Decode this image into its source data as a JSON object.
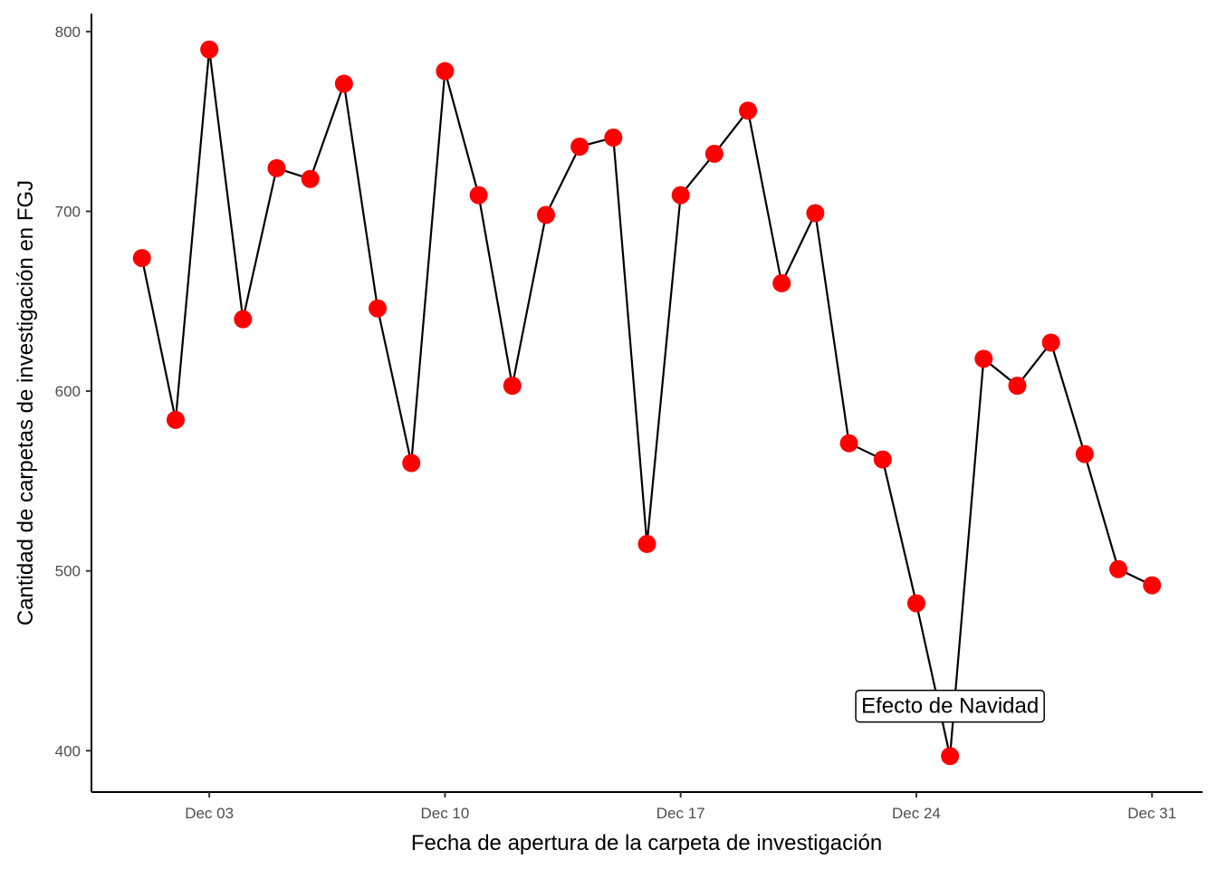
{
  "chart_data": {
    "type": "line",
    "title": "",
    "xlabel": "Fecha de apertura de la carpeta de investigación",
    "ylabel": "Cantidad de carpetas de investigación en FGJ",
    "x_tick_labels": [
      "Dec 03",
      "Dec 10",
      "Dec 17",
      "Dec 24",
      "Dec 31"
    ],
    "x_tick_days": [
      3,
      10,
      17,
      24,
      31
    ],
    "y_ticks": [
      400,
      500,
      600,
      700,
      800
    ],
    "xlim": [
      -0.5,
      32.5
    ],
    "ylim": [
      377,
      810
    ],
    "grid": false,
    "legend": "none",
    "point_color": "#ff0000",
    "line_color": "#000000",
    "series": [
      {
        "x": [
          "2019-12-01",
          "2019-12-02",
          "2019-12-03",
          "2019-12-04",
          "2019-12-05",
          "2019-12-06",
          "2019-12-07",
          "2019-12-08",
          "2019-12-09",
          "2019-12-10",
          "2019-12-11",
          "2019-12-12",
          "2019-12-13",
          "2019-12-14",
          "2019-12-15",
          "2019-12-16",
          "2019-12-17",
          "2019-12-18",
          "2019-12-19",
          "2019-12-20",
          "2019-12-21",
          "2019-12-22",
          "2019-12-23",
          "2019-12-24",
          "2019-12-25",
          "2019-12-26",
          "2019-12-27",
          "2019-12-28",
          "2019-12-29",
          "2019-12-30",
          "2019-12-31"
        ],
        "values": [
          674,
          584,
          790,
          640,
          724,
          718,
          771,
          646,
          560,
          778,
          709,
          603,
          698,
          736,
          741,
          515,
          709,
          732,
          756,
          660,
          699,
          571,
          562,
          482,
          397,
          618,
          603,
          627,
          565,
          501,
          492
        ]
      }
    ],
    "annotations": [
      {
        "text": "Efecto de Navidad",
        "x": "2019-12-25",
        "y": 425
      }
    ]
  }
}
